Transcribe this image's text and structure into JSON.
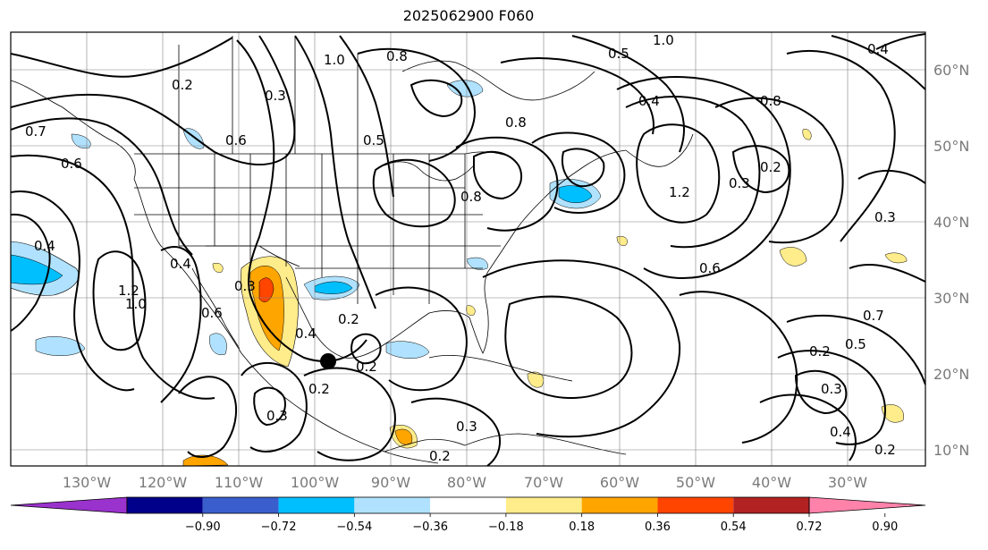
{
  "title": "2025062900 F060",
  "lon_labels": [
    "130°W",
    "120°W",
    "110°W",
    "100°W",
    "90°W",
    "80°W",
    "70°W",
    "60°W",
    "50°W",
    "40°W",
    "30°W"
  ],
  "lat_labels": [
    "60°N",
    "50°N",
    "40°N",
    "30°N",
    "20°N",
    "10°N"
  ],
  "colorbar": {
    "ticks": [
      "−0.90",
      "−0.72",
      "−0.54",
      "−0.36",
      "−0.18",
      "0.18",
      "0.36",
      "0.54",
      "0.72",
      "0.90"
    ],
    "colors": [
      "#9a32cd",
      "#00008b",
      "#3a5fcd",
      "#00bfff",
      "#b0e2ff",
      "#ffffff",
      "#ffec8b",
      "#ffa500",
      "#ff4500",
      "#b22222",
      "#ff82ab"
    ]
  },
  "contour_labels": [
    "0.2",
    "0.3",
    "1.0",
    "0.8",
    "0.5",
    "0.6",
    "0.4",
    "0.7",
    "1.2",
    "0.3",
    "0.2",
    "0.4",
    "0.6",
    "1.2",
    "1.0",
    "0.3",
    "0.4",
    "0.2",
    "0.2",
    "0.3",
    "0.8",
    "0.4",
    "0.6",
    "0.2",
    "1.0",
    "0.8",
    "0.5",
    "0.4",
    "0.2",
    "0.3",
    "0.5",
    "0.3",
    "0.4",
    "0.2",
    "0.7",
    "0.6",
    "0.3",
    "0.8",
    "0.2"
  ],
  "marker": "storm-center"
}
